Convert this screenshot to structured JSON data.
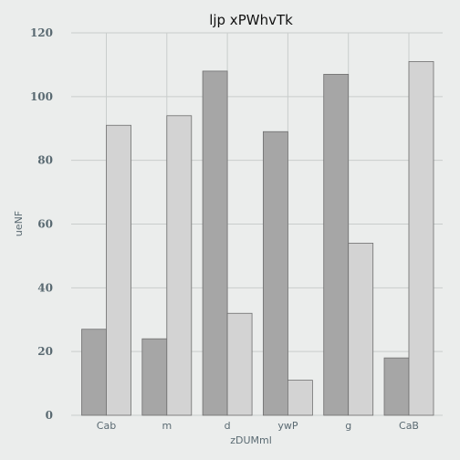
{
  "chart_data": {
    "type": "bar",
    "title": "ljp xPWhvTk",
    "xlabel": "zDUMml",
    "ylabel": "ueNF",
    "categories": [
      "Cab",
      "m",
      "d",
      "ywP",
      "g",
      "CaB"
    ],
    "series": [
      {
        "values": [
          27,
          24,
          108,
          89,
          107,
          18
        ],
        "color": "#a6a6a6"
      },
      {
        "values": [
          91,
          94,
          32,
          11,
          54,
          111
        ],
        "color": "#d3d3d3"
      }
    ],
    "ylim": [
      0,
      120
    ],
    "yticks": [
      0,
      20,
      40,
      60,
      80,
      100,
      120
    ],
    "grid": true,
    "background": "#ebedec"
  }
}
